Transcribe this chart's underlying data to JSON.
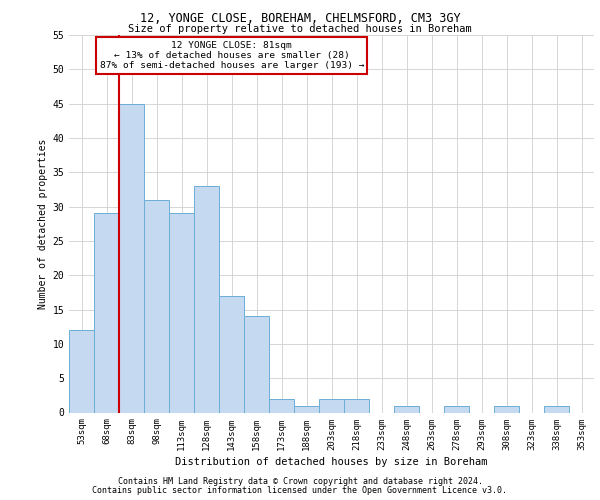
{
  "title1": "12, YONGE CLOSE, BOREHAM, CHELMSFORD, CM3 3GY",
  "title2": "Size of property relative to detached houses in Boreham",
  "xlabel": "Distribution of detached houses by size in Boreham",
  "ylabel": "Number of detached properties",
  "categories": [
    "53sqm",
    "68sqm",
    "83sqm",
    "98sqm",
    "113sqm",
    "128sqm",
    "143sqm",
    "158sqm",
    "173sqm",
    "188sqm",
    "203sqm",
    "218sqm",
    "233sqm",
    "248sqm",
    "263sqm",
    "278sqm",
    "293sqm",
    "308sqm",
    "323sqm",
    "338sqm",
    "353sqm"
  ],
  "values": [
    12,
    29,
    45,
    31,
    29,
    33,
    17,
    14,
    2,
    1,
    2,
    2,
    0,
    1,
    0,
    1,
    0,
    1,
    0,
    1,
    0
  ],
  "bar_color": "#c5d9f1",
  "bar_edge_color": "#6baed6",
  "marker_label": "12 YONGE CLOSE: 81sqm",
  "annotation_line1": "← 13% of detached houses are smaller (28)",
  "annotation_line2": "87% of semi-detached houses are larger (193) →",
  "vline_color": "#cc0000",
  "vline_x_index": 1.5,
  "ylim": [
    0,
    55
  ],
  "yticks": [
    0,
    5,
    10,
    15,
    20,
    25,
    30,
    35,
    40,
    45,
    50,
    55
  ],
  "annotation_box_color": "#cc0000",
  "footer1": "Contains HM Land Registry data © Crown copyright and database right 2024.",
  "footer2": "Contains public sector information licensed under the Open Government Licence v3.0.",
  "background_color": "#ffffff",
  "grid_color": "#d0d0d0"
}
